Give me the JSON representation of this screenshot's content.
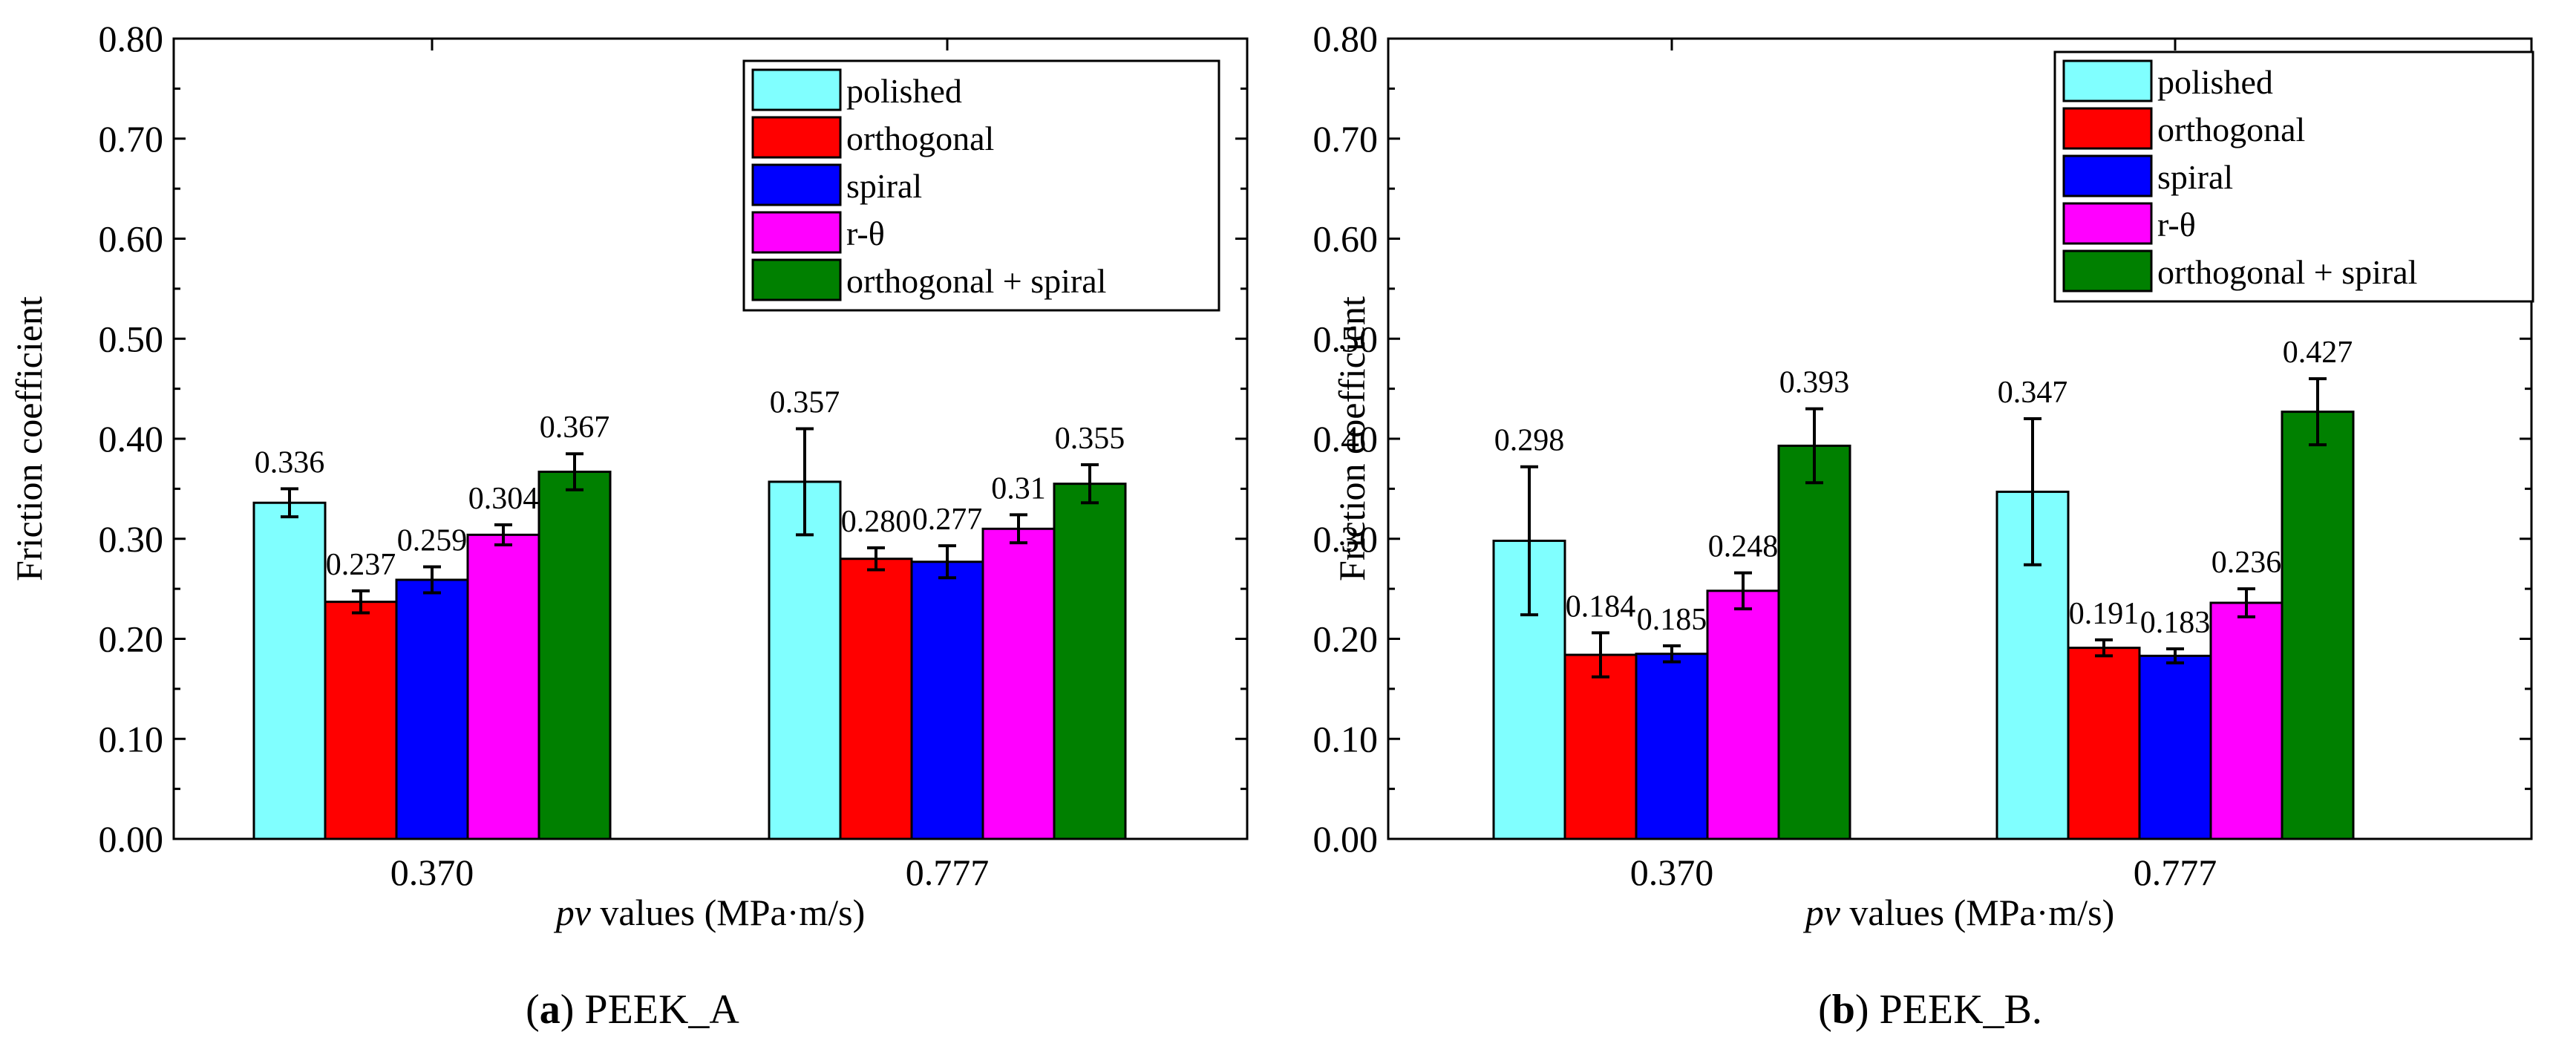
{
  "chart_data": [
    {
      "type": "bar",
      "panel_label": "(a)",
      "caption": "PEEK_A",
      "xlabel_italic": "pv",
      "xlabel_rest": " values (MPa·m/s)",
      "ylabel": "Friction coefficient",
      "ylim": [
        0,
        0.8
      ],
      "yticks": [
        "0.00",
        "0.10",
        "0.20",
        "0.30",
        "0.40",
        "0.50",
        "0.60",
        "0.70",
        "0.80"
      ],
      "categories": [
        "0.370",
        "0.777"
      ],
      "legend_position": "top-right",
      "series": [
        {
          "name": "polished",
          "color": "#80ffff",
          "values": [
            0.336,
            0.357
          ],
          "errors": [
            0.014,
            0.053
          ],
          "labels": [
            "0.336",
            "0.357"
          ]
        },
        {
          "name": "orthogonal",
          "color": "#ff0000",
          "values": [
            0.237,
            0.28
          ],
          "errors": [
            0.011,
            0.011
          ],
          "labels": [
            "0.237",
            "0.280"
          ]
        },
        {
          "name": "spiral",
          "color": "#0000ff",
          "values": [
            0.259,
            0.277
          ],
          "errors": [
            0.013,
            0.016
          ],
          "labels": [
            "0.259",
            "0.277"
          ]
        },
        {
          "name": "r-θ",
          "color": "#ff00ff",
          "values": [
            0.304,
            0.31
          ],
          "errors": [
            0.01,
            0.014
          ],
          "labels": [
            "0.304",
            "0.31"
          ]
        },
        {
          "name": "orthogonal + spiral",
          "color": "#008000",
          "values": [
            0.367,
            0.355
          ],
          "errors": [
            0.018,
            0.019
          ],
          "labels": [
            "0.367",
            "0.355"
          ]
        }
      ]
    },
    {
      "type": "bar",
      "panel_label": "(b)",
      "caption": "PEEK_B.",
      "xlabel_italic": "pv",
      "xlabel_rest": " values (MPa·m/s)",
      "ylabel": "Friction coefficient",
      "ylim": [
        0,
        0.8
      ],
      "yticks": [
        "0.00",
        "0.10",
        "0.20",
        "0.30",
        "0.40",
        "0.50",
        "0.60",
        "0.70",
        "0.80"
      ],
      "categories": [
        "0.370",
        "0.777"
      ],
      "legend_position": "top-right",
      "series": [
        {
          "name": "polished",
          "color": "#80ffff",
          "values": [
            0.298,
            0.347
          ],
          "errors": [
            0.074,
            0.073
          ],
          "labels": [
            "0.298",
            "0.347"
          ]
        },
        {
          "name": "orthogonal",
          "color": "#ff0000",
          "values": [
            0.184,
            0.191
          ],
          "errors": [
            0.022,
            0.008
          ],
          "labels": [
            "0.184",
            "0.191"
          ]
        },
        {
          "name": "spiral",
          "color": "#0000ff",
          "values": [
            0.185,
            0.183
          ],
          "errors": [
            0.008,
            0.007
          ],
          "labels": [
            "0.185",
            "0.183"
          ]
        },
        {
          "name": "r-θ",
          "color": "#ff00ff",
          "values": [
            0.248,
            0.236
          ],
          "errors": [
            0.018,
            0.014
          ],
          "labels": [
            "0.248",
            "0.236"
          ]
        },
        {
          "name": "orthogonal + spiral",
          "color": "#008000",
          "values": [
            0.393,
            0.427
          ],
          "errors": [
            0.037,
            0.033
          ],
          "labels": [
            "0.393",
            "0.427"
          ]
        }
      ]
    }
  ]
}
